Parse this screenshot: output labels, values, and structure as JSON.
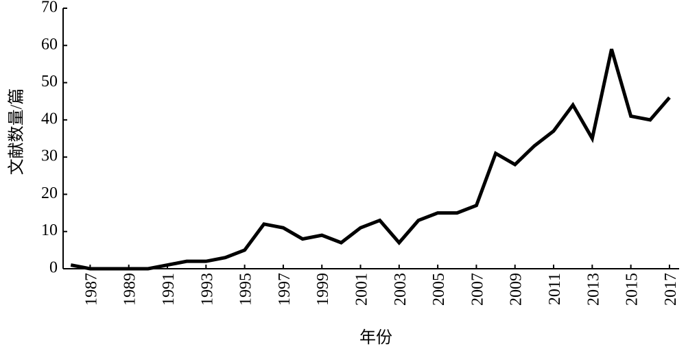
{
  "chart_data": {
    "type": "line",
    "x_label": "年份",
    "y_label": "文献数量/篇",
    "x": [
      1986,
      1987,
      1988,
      1989,
      1990,
      1991,
      1992,
      1993,
      1994,
      1995,
      1996,
      1997,
      1998,
      1999,
      2000,
      2001,
      2002,
      2003,
      2004,
      2005,
      2006,
      2007,
      2008,
      2009,
      2010,
      2011,
      2012,
      2013,
      2014,
      2015,
      2016,
      2017
    ],
    "values": [
      1,
      0,
      0,
      0,
      0,
      1,
      2,
      2,
      3,
      5,
      12,
      11,
      8,
      9,
      7,
      11,
      13,
      7,
      13,
      15,
      15,
      17,
      31,
      28,
      33,
      37,
      44,
      35,
      59,
      41,
      40,
      46
    ],
    "color": "#000000",
    "xlim": [
      1985.6,
      2017.5
    ],
    "xticks": [
      1987,
      1989,
      1991,
      1993,
      1995,
      1997,
      1999,
      2001,
      2003,
      2005,
      2007,
      2009,
      2011,
      2013,
      2015,
      2017
    ],
    "ylim": [
      0,
      70
    ],
    "yticks": [
      0,
      10,
      20,
      30,
      40,
      50,
      60,
      70
    ],
    "grid": false
  }
}
